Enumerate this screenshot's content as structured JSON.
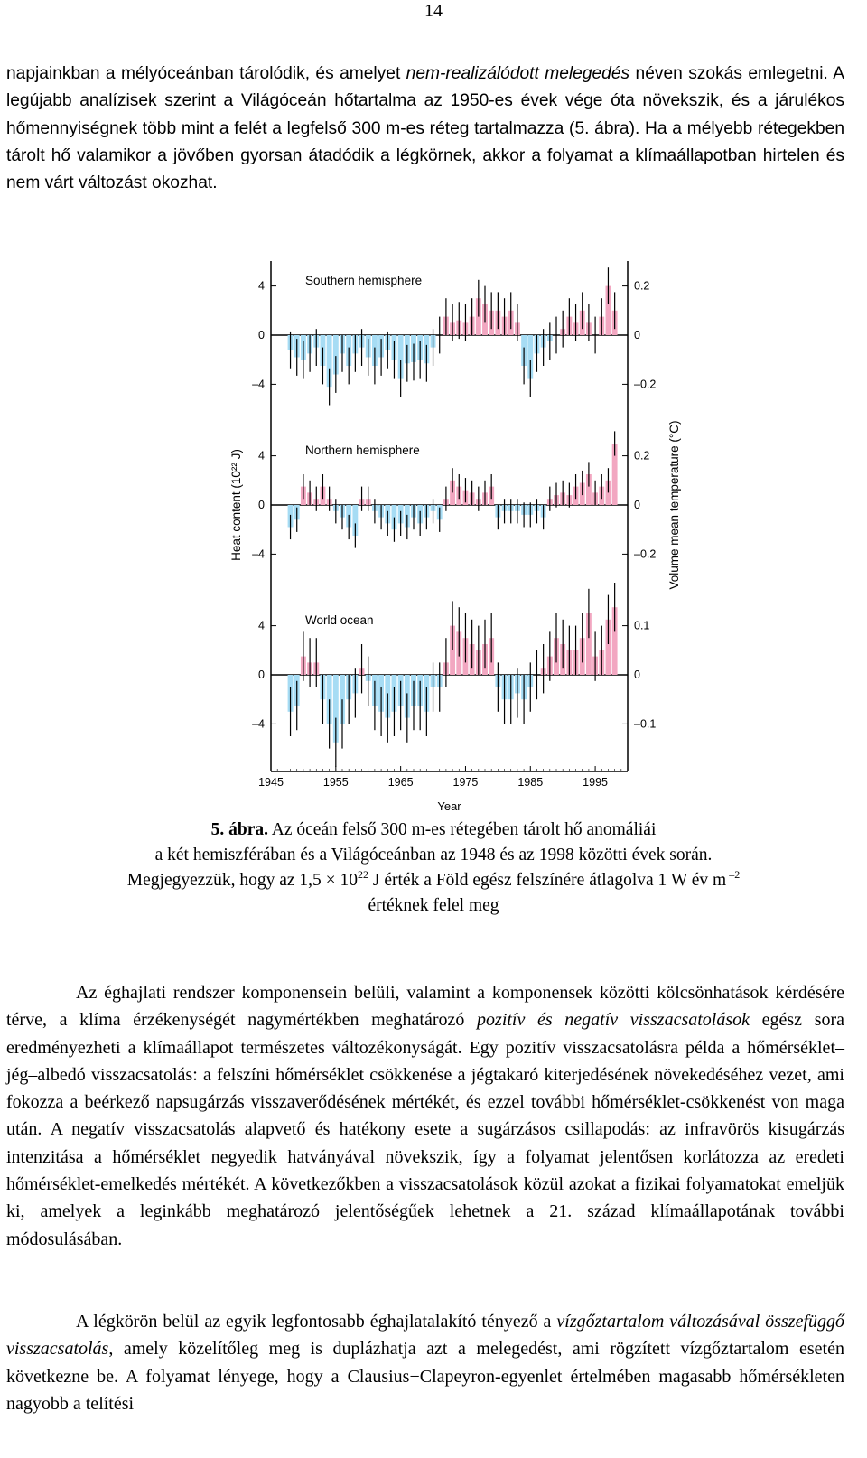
{
  "page_number": "14",
  "intro_paragraph": {
    "part1": "napjainkban a mélyóceánban tárolódik, és amelyet ",
    "italic1": "nem-realizálódott melegedés",
    "part2": " néven szokás emlegetni. A legújabb analízisek szerint a Világóceán hőtartalma az 1950-es évek vége óta növekszik, és a járulékos hőmennyiségnek több mint a felét a legfelső 300 m-es réteg tartalmazza (5. ábra). Ha a mélyebb rétegekben tárolt hő valamikor a jövőben gyorsan átadódik a légkörnek, akkor a folyamat a klímaállapotban hirtelen és nem várt változást okozhat."
  },
  "caption": {
    "label": "5. ábra.",
    "line1": " Az óceán felső 300 m-es rétegében tárolt hő anomáliái",
    "line2": "a két hemiszférában és a Világóceánban az 1948 és az 1998 közötti évek során.",
    "line3_a": "Megjegyezzük, hogy az 1,5 × 10",
    "line3_exp": "22",
    "line3_b": " J érték a Föld egész felszínére átlagolva 1 W év m",
    "line3_exp2": " –2",
    "line4": "értéknek felel meg"
  },
  "paragraph2": {
    "part1": "Az éghajlati rendszer komponensein belüli, valamint a komponensek közötti kölcsönhatások kérdésére térve, a klíma érzékenységét nagymértékben meghatározó ",
    "italic1": "pozitív és negatív visszacsatolások",
    "part2": " egész sora eredményezheti a klímaállapot természetes változékonyságát. Egy pozitív visszacsatolásra példa a hőmérséklet–jég–albedó visszacsatolás: a felszíni hőmérséklet csökkenése a jégtakaró kiterjedésének növekedéséhez vezet, ami fokozza a beérkező napsugárzás visszaverődésének mértékét, és ezzel további hőmérséklet-csökkenést von maga után. A negatív visszacsatolás alapvető és hatékony esete a sugárzásos csillapodás: az infravörös kisugárzás intenzitása a hőmérséklet negyedik hatványával növekszik, így a folyamat jelentősen korlátozza az eredeti hőmérséklet-emelkedés mértékét. A következőkben a visszacsatolások közül azokat a fizikai folyamatokat emeljük ki, amelyek a leginkább meghatározó jelentőségűek lehetnek a 21. század klímaállapotának további módosulásában."
  },
  "paragraph3": {
    "part1": "A légkörön belül az egyik legfontosabb éghajlatalakító tényező a ",
    "italic1": "vízgőztartalom változásával összefüggő visszacsatolás",
    "part2": ", amely közelítőleg meg is duplázhatja azt a melegedést, ami rögzített vízgőztartalom esetén következne be. A folyamat lényege, hogy a Clausius−Clapeyron-egyenlet értelmében magasabb hőmérsékleten nagyobb a telítési"
  },
  "chart_data": {
    "type": "bar",
    "xlabel": "Year",
    "ylabel_left": "Heat content (10²² J)",
    "ylabel_right": "Volume mean temperature (°C)",
    "x_range": [
      1945,
      2000
    ],
    "x_ticks": [
      "1945",
      "1955",
      "1965",
      "1975",
      "1985",
      "1995"
    ],
    "colors": {
      "positive": "#f2a7c1",
      "negative": "#a6dcf4",
      "error_bar": "#000000"
    },
    "panels": [
      {
        "title": "Southern hemisphere",
        "left_ticks": [
          "4",
          "0",
          "–4"
        ],
        "right_ticks": [
          "0.2",
          "0",
          "–0.2"
        ],
        "left_ylim": [
          -6.5,
          6
        ],
        "right_ylim": [
          -0.325,
          0.3
        ],
        "years": [
          1948,
          1949,
          1950,
          1951,
          1952,
          1953,
          1954,
          1955,
          1956,
          1957,
          1958,
          1959,
          1960,
          1961,
          1962,
          1963,
          1964,
          1965,
          1966,
          1967,
          1968,
          1969,
          1970,
          1971,
          1972,
          1973,
          1974,
          1975,
          1976,
          1977,
          1978,
          1979,
          1980,
          1981,
          1982,
          1983,
          1984,
          1985,
          1986,
          1987,
          1988,
          1989,
          1990,
          1991,
          1992,
          1993,
          1994,
          1995,
          1996,
          1997,
          1998
        ],
        "values": [
          -1.2,
          -1.8,
          -2.0,
          -1.5,
          -1.0,
          -2.5,
          -4.2,
          -3.2,
          -1.5,
          -2.5,
          -1.5,
          -1.0,
          -1.8,
          -2.5,
          -1.8,
          -1.2,
          -2.0,
          -3.5,
          -2.3,
          -2.2,
          -2.0,
          -2.3,
          -1.0,
          0,
          1.5,
          1.0,
          1.2,
          1.0,
          1.5,
          3.0,
          2.5,
          2.0,
          2.0,
          1.5,
          2.0,
          1.0,
          -2.5,
          -3.5,
          -1.5,
          -1.0,
          -0.5,
          0,
          0.5,
          1.5,
          1.0,
          2.0,
          1.0,
          0,
          1.5,
          4.0,
          2.0
        ],
        "errors": [
          1.5,
          1.5,
          1.5,
          1.5,
          1.5,
          1.5,
          1.5,
          1.5,
          1.5,
          1.5,
          1.5,
          1.5,
          1.5,
          1.5,
          1.5,
          1.5,
          1.5,
          1.5,
          1.5,
          1.5,
          1.5,
          1.5,
          1.5,
          1.5,
          1.5,
          1.5,
          1.5,
          1.5,
          1.5,
          1.5,
          1.5,
          1.5,
          1.5,
          1.5,
          1.5,
          1.5,
          1.5,
          1.5,
          1.5,
          1.5,
          1.5,
          1.5,
          1.5,
          1.5,
          1.5,
          1.5,
          1.5,
          1.5,
          1.5,
          1.5,
          1.5
        ]
      },
      {
        "title": "Northern hemisphere",
        "left_ticks": [
          "4",
          "0",
          "–4"
        ],
        "right_ticks": [
          "0.2",
          "0",
          "–0.2"
        ],
        "left_ylim": [
          -6.5,
          6
        ],
        "right_ylim": [
          -0.325,
          0.3
        ],
        "years": [
          1948,
          1949,
          1950,
          1951,
          1952,
          1953,
          1954,
          1955,
          1956,
          1957,
          1958,
          1959,
          1960,
          1961,
          1962,
          1963,
          1964,
          1965,
          1966,
          1967,
          1968,
          1969,
          1970,
          1971,
          1972,
          1973,
          1974,
          1975,
          1976,
          1977,
          1978,
          1979,
          1980,
          1981,
          1982,
          1983,
          1984,
          1985,
          1986,
          1987,
          1988,
          1989,
          1990,
          1991,
          1992,
          1993,
          1994,
          1995,
          1996,
          1997,
          1998
        ],
        "values": [
          -1.8,
          -1.2,
          1.5,
          1.0,
          0.5,
          1.5,
          0.5,
          -0.5,
          -1.0,
          -1.8,
          -2.5,
          0.5,
          0.5,
          -0.5,
          -1.0,
          -1.5,
          -2.0,
          -1.5,
          -1.8,
          -1.0,
          -1.5,
          -1.0,
          -0.5,
          -1.2,
          0.5,
          2.0,
          1.5,
          1.2,
          1.0,
          0.5,
          1.0,
          1.5,
          -1.0,
          -0.5,
          -0.5,
          -0.5,
          -0.8,
          -0.8,
          -0.5,
          -1.0,
          0.5,
          0.8,
          1.0,
          0.8,
          1.5,
          1.8,
          2.5,
          1.0,
          1.5,
          2.0,
          5.0
        ],
        "errors": [
          1.0,
          1.0,
          1.0,
          1.0,
          1.0,
          1.0,
          1.0,
          1.0,
          1.0,
          1.0,
          1.0,
          1.0,
          1.0,
          1.0,
          1.0,
          1.0,
          1.0,
          1.0,
          1.0,
          1.0,
          1.0,
          1.0,
          1.0,
          1.0,
          1.0,
          1.0,
          1.0,
          1.0,
          1.0,
          1.0,
          1.0,
          1.0,
          1.0,
          1.0,
          1.0,
          1.0,
          1.0,
          1.0,
          1.0,
          1.0,
          1.0,
          1.0,
          1.0,
          1.0,
          1.0,
          1.0,
          1.0,
          1.0,
          1.0,
          1.0,
          1.0
        ]
      },
      {
        "title": "World ocean",
        "left_ticks": [
          "4",
          "0",
          "–4"
        ],
        "right_ticks": [
          "0.1",
          "0",
          "–0.1"
        ],
        "left_ylim": [
          -6.5,
          6
        ],
        "right_ylim": [
          -0.1625,
          0.15
        ],
        "years": [
          1948,
          1949,
          1950,
          1951,
          1952,
          1953,
          1954,
          1955,
          1956,
          1957,
          1958,
          1959,
          1960,
          1961,
          1962,
          1963,
          1964,
          1965,
          1966,
          1967,
          1968,
          1969,
          1970,
          1971,
          1972,
          1973,
          1974,
          1975,
          1976,
          1977,
          1978,
          1979,
          1980,
          1981,
          1982,
          1983,
          1984,
          1985,
          1986,
          1987,
          1988,
          1989,
          1990,
          1991,
          1992,
          1993,
          1994,
          1995,
          1996,
          1997,
          1998
        ],
        "values": [
          -3.0,
          -2.5,
          1.5,
          1.0,
          1.0,
          -2.0,
          -4.0,
          -5.5,
          -4.0,
          -2.0,
          -1.5,
          0.5,
          -0.5,
          -2.5,
          -3.0,
          -3.5,
          -3.0,
          -2.5,
          -3.5,
          -2.5,
          -2.5,
          -3.0,
          -1.0,
          -1.0,
          1.0,
          4.0,
          3.5,
          3.0,
          2.5,
          2.0,
          2.5,
          3.0,
          -1.0,
          -2.0,
          -2.0,
          -1.5,
          -2.0,
          -1.0,
          0,
          0.5,
          1.5,
          3.0,
          2.5,
          2.0,
          2.0,
          3.0,
          5.0,
          1.5,
          2.0,
          4.5,
          5.5
        ],
        "errors": [
          2.0,
          2.0,
          2.0,
          2.0,
          2.0,
          2.0,
          2.0,
          2.0,
          2.0,
          2.0,
          2.0,
          2.0,
          2.0,
          2.0,
          2.0,
          2.0,
          2.0,
          2.0,
          2.0,
          2.0,
          2.0,
          2.0,
          2.0,
          2.0,
          2.0,
          2.0,
          2.0,
          2.0,
          2.0,
          2.0,
          2.0,
          2.0,
          2.0,
          2.0,
          2.0,
          2.0,
          2.0,
          2.0,
          2.0,
          2.0,
          2.0,
          2.0,
          2.0,
          2.0,
          2.0,
          2.0,
          2.0,
          2.0,
          2.0,
          2.0,
          2.0
        ]
      }
    ]
  }
}
